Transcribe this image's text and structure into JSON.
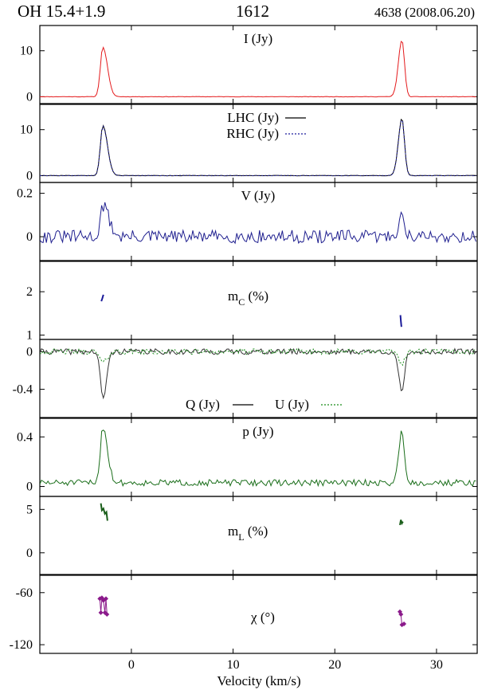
{
  "header": {
    "source": "OH 15.4+1.9",
    "frequency": "1612",
    "epoch": "4638 (2008.06.20)"
  },
  "chart_data": {
    "type": "line",
    "xlabel": "Velocity (km/s)",
    "xlim": [
      -9,
      34
    ],
    "xticks": [
      0,
      10,
      20,
      30
    ],
    "xticklabels": [
      "0",
      "10",
      "20",
      "30"
    ],
    "peaks": [
      -2.8,
      26.6
    ],
    "panels": [
      {
        "id": "I",
        "title": "I (Jy)",
        "ylim": [
          -1.5,
          15.5
        ],
        "yticks": [
          0,
          10
        ],
        "yticklabels": [
          "0",
          "10"
        ],
        "series": [
          {
            "name": "I",
            "color": "#e41a1c",
            "kind": "line",
            "dash": "",
            "baseline": 0,
            "noise": 0.05,
            "seed": 11,
            "shape": [
              {
                "v": -2.8,
                "amp": 10.8,
                "wl": 0.25,
                "wr": 0.45
              },
              {
                "v": 26.6,
                "amp": 12.4,
                "wl": 0.35,
                "wr": 0.25
              }
            ]
          }
        ]
      },
      {
        "id": "LR",
        "title": "",
        "ylim": [
          -1.5,
          15.5
        ],
        "yticks": [
          0,
          10
        ],
        "yticklabels": [
          "0",
          "10"
        ],
        "legend": [
          {
            "label": "LHC (Jy)",
            "color": "#000000",
            "dash": ""
          },
          {
            "label": "RHC (Jy)",
            "color": "#1f1f9e",
            "dash": "2,2"
          }
        ],
        "series": [
          {
            "name": "LHC",
            "color": "#000000",
            "kind": "line",
            "dash": "",
            "baseline": 0,
            "noise": 0.05,
            "seed": 21,
            "shape": [
              {
                "v": -2.8,
                "amp": 10.9,
                "wl": 0.25,
                "wr": 0.45
              },
              {
                "v": 26.6,
                "amp": 12.5,
                "wl": 0.35,
                "wr": 0.25
              }
            ]
          },
          {
            "name": "RHC",
            "color": "#1f1f9e",
            "kind": "line",
            "dash": "2,2",
            "baseline": 0,
            "noise": 0.05,
            "seed": 22,
            "shape": [
              {
                "v": -2.8,
                "amp": 10.7,
                "wl": 0.25,
                "wr": 0.45
              },
              {
                "v": 26.6,
                "amp": 12.3,
                "wl": 0.35,
                "wr": 0.25
              }
            ]
          }
        ]
      },
      {
        "id": "V",
        "title": "V (Jy)",
        "ylim": [
          -0.11,
          0.25
        ],
        "yticks": [
          0,
          0.2
        ],
        "yticklabels": [
          "0",
          "0.2"
        ],
        "series": [
          {
            "name": "V",
            "color": "#1f1f8f",
            "kind": "line",
            "dash": "",
            "baseline": 0,
            "noise": 0.03,
            "seed": 31,
            "shape": [
              {
                "v": -2.8,
                "amp": 0.14,
                "wl": 0.25,
                "wr": 0.6
              },
              {
                "v": 26.6,
                "amp": 0.09,
                "wl": 0.35,
                "wr": 0.3
              }
            ]
          }
        ]
      },
      {
        "id": "mC",
        "title": "m",
        "title_sub": "C",
        "title_suffix": " (%)",
        "ylim": [
          0.9,
          2.7
        ],
        "yticks": [
          1,
          2
        ],
        "yticklabels": [
          "1",
          "2"
        ],
        "series": [
          {
            "name": "mC",
            "color": "#1a1a99",
            "kind": "segments",
            "dash": "",
            "points": [
              [
                [
                  -2.95,
                  1.78
                ],
                [
                  -2.85,
                  1.85
                ],
                [
                  -2.75,
                  1.93
                ]
              ],
              [
                [
                  26.45,
                  1.46
                ],
                [
                  26.5,
                  1.32
                ],
                [
                  26.55,
                  1.19
                ]
              ]
            ]
          }
        ]
      },
      {
        "id": "QU",
        "title": "",
        "ylim": [
          -0.7,
          0.13
        ],
        "yticks": [
          0,
          -0.4
        ],
        "yticklabels": [
          "0",
          "-0.4"
        ],
        "legend_inline": [
          {
            "label": "Q (Jy)",
            "color": "#000000",
            "dash": ""
          },
          {
            "label": "U (Jy)",
            "color": "#1a8c1a",
            "dash": "2,2"
          }
        ],
        "series": [
          {
            "name": "Q",
            "color": "#333333",
            "kind": "line",
            "dash": "",
            "baseline": 0,
            "noise": 0.03,
            "seed": 41,
            "shape": [
              {
                "v": -2.8,
                "amp": -0.5,
                "wl": 0.25,
                "wr": 0.35
              },
              {
                "v": 26.6,
                "amp": -0.45,
                "wl": 0.3,
                "wr": 0.25
              }
            ]
          },
          {
            "name": "U",
            "color": "#1a8c1a",
            "kind": "line",
            "dash": "2,2",
            "baseline": 0,
            "noise": 0.03,
            "seed": 42,
            "shape": [
              {
                "v": -2.8,
                "amp": -0.12,
                "wl": 0.3,
                "wr": 0.4
              },
              {
                "v": 26.6,
                "amp": -0.12,
                "wl": 0.3,
                "wr": 0.3
              }
            ]
          }
        ]
      },
      {
        "id": "p",
        "title": "p (Jy)",
        "ylim": [
          -0.08,
          0.55
        ],
        "yticks": [
          0,
          0.4
        ],
        "yticklabels": [
          "0",
          "0.4"
        ],
        "series": [
          {
            "name": "p",
            "color": "#1a6e1a",
            "kind": "line",
            "dash": "",
            "baseline": 0.03,
            "noise": 0.025,
            "seed": 51,
            "positive": true,
            "shape": [
              {
                "v": -2.8,
                "amp": 0.45,
                "wl": 0.25,
                "wr": 0.45
              },
              {
                "v": 26.6,
                "amp": 0.42,
                "wl": 0.3,
                "wr": 0.25
              }
            ]
          }
        ]
      },
      {
        "id": "mL",
        "title": "m",
        "title_sub": "L",
        "title_suffix": " (%)",
        "ylim": [
          -2.5,
          6.5
        ],
        "yticks": [
          5,
          0
        ],
        "yticklabels": [
          "5",
          "0"
        ],
        "series": [
          {
            "name": "mL",
            "color": "#1a5e1a",
            "kind": "segments",
            "dash": "",
            "points": [
              [
                [
                  -3.0,
                  5.7
                ],
                [
                  -2.9,
                  4.9
                ],
                [
                  -2.75,
                  5.1
                ],
                [
                  -2.6,
                  4.5
                ],
                [
                  -2.45,
                  4.7
                ],
                [
                  -2.35,
                  3.7
                ]
              ],
              [
                [
                  26.4,
                  3.2
                ],
                [
                  26.5,
                  3.8
                ],
                [
                  26.6,
                  3.4
                ],
                [
                  26.7,
                  3.6
                ]
              ]
            ]
          }
        ]
      },
      {
        "id": "chi",
        "title": "χ (°)",
        "ylim": [
          -130,
          -40
        ],
        "yticks": [
          -60,
          -120
        ],
        "yticklabels": [
          "-60",
          "-120"
        ],
        "series": [
          {
            "name": "chi",
            "color": "#8b1a8b",
            "kind": "markers",
            "dash": "",
            "points": [
              [
                [
                  -3.1,
                  -67
                ],
                [
                  -3.0,
                  -83
                ],
                [
                  -2.9,
                  -66
                ],
                [
                  -2.75,
                  -69
                ],
                [
                  -2.6,
                  -83
                ],
                [
                  -2.5,
                  -67
                ],
                [
                  -2.4,
                  -85
                ]
              ],
              [
                [
                  26.4,
                  -82
                ],
                [
                  26.5,
                  -85
                ],
                [
                  26.6,
                  -97
                ],
                [
                  26.8,
                  -96
                ]
              ]
            ]
          }
        ]
      }
    ]
  }
}
